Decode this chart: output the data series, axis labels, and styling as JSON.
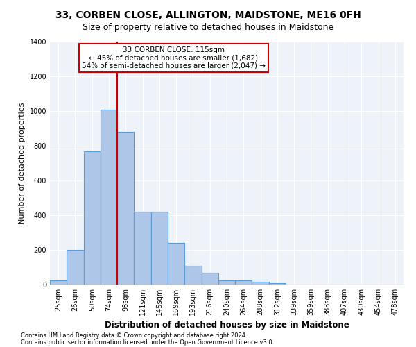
{
  "title": "33, CORBEN CLOSE, ALLINGTON, MAIDSTONE, ME16 0FH",
  "subtitle": "Size of property relative to detached houses in Maidstone",
  "xlabel": "Distribution of detached houses by size in Maidstone",
  "ylabel": "Number of detached properties",
  "categories": [
    "25sqm",
    "26sqm",
    "50sqm",
    "74sqm",
    "98sqm",
    "121sqm",
    "145sqm",
    "169sqm",
    "193sqm",
    "216sqm",
    "240sqm",
    "264sqm",
    "288sqm",
    "312sqm",
    "339sqm",
    "359sqm",
    "383sqm",
    "407sqm",
    "430sqm",
    "454sqm",
    "478sqm"
  ],
  "bar_heights": [
    25,
    200,
    770,
    1010,
    880,
    420,
    420,
    240,
    110,
    70,
    25,
    25,
    15,
    10,
    0,
    0,
    0,
    0,
    0,
    0,
    0
  ],
  "bar_color": "#aec6e8",
  "bar_edge_color": "#5b9bd5",
  "property_line_x": 4,
  "property_line_color": "#cc0000",
  "annotation_text": "33 CORBEN CLOSE: 115sqm\n← 45% of detached houses are smaller (1,682)\n54% of semi-detached houses are larger (2,047) →",
  "annotation_box_color": "#ffffff",
  "annotation_box_edge": "#cc0000",
  "ylim": [
    0,
    1400
  ],
  "yticks": [
    0,
    200,
    400,
    600,
    800,
    1000,
    1200,
    1400
  ],
  "footnote1": "Contains HM Land Registry data © Crown copyright and database right 2024.",
  "footnote2": "Contains public sector information licensed under the Open Government Licence v3.0.",
  "bg_color": "#eef3fa",
  "fig_bg_color": "#ffffff",
  "grid_color": "#ffffff",
  "title_fontsize": 10,
  "subtitle_fontsize": 9,
  "tick_fontsize": 7,
  "ylabel_fontsize": 8,
  "xlabel_fontsize": 8.5,
  "annotation_fontsize": 7.5
}
